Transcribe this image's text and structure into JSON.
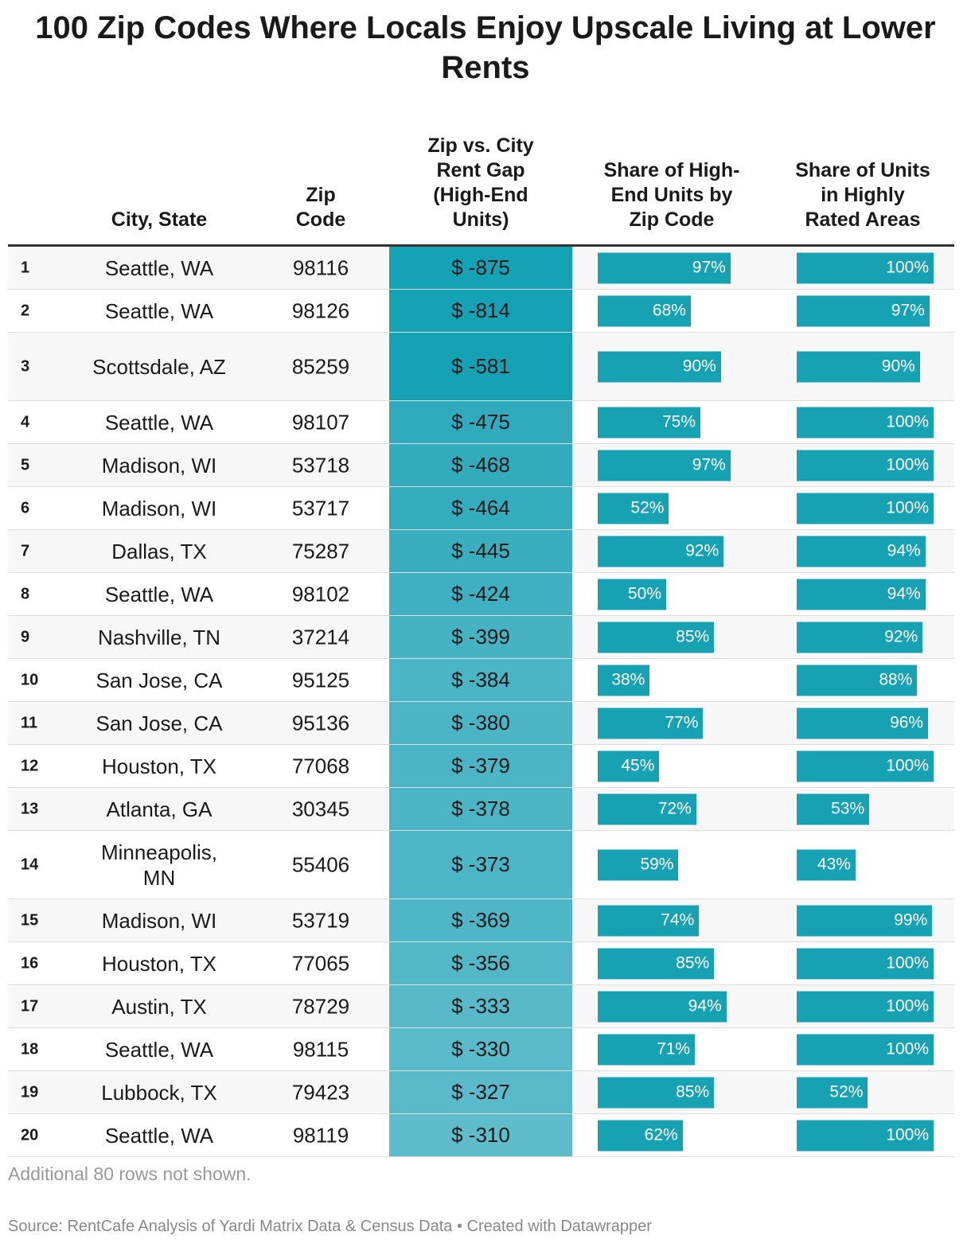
{
  "title": "100 Zip Codes Where Locals Enjoy Upscale Living at Lower Rents",
  "columns": {
    "city": "City, State",
    "zip": "Zip Code",
    "gap": "Zip vs. City Rent Gap (High-End Units)",
    "share_high_end": "Share of High-End Units by Zip Code",
    "share_rated": "Share of Units in Highly Rated Areas"
  },
  "colors": {
    "bar": "#17a2b4",
    "gap_dark": "#16a2b5",
    "gap_light": "#5fbccb",
    "rule": "#333333"
  },
  "chart_data": {
    "type": "table",
    "rows": [
      {
        "rank": "1",
        "city": "Seattle, WA",
        "zip": "98116",
        "gap": -875,
        "gap_label": "$ -875",
        "share_high_end": 97,
        "share_high_end_label": "97%",
        "share_rated": 100,
        "share_rated_label": "100%"
      },
      {
        "rank": "2",
        "city": "Seattle, WA",
        "zip": "98126",
        "gap": -814,
        "gap_label": "$ -814",
        "share_high_end": 68,
        "share_high_end_label": "68%",
        "share_rated": 97,
        "share_rated_label": "97%"
      },
      {
        "rank": "3",
        "city": "Scottsdale, AZ",
        "zip": "85259",
        "gap": -581,
        "gap_label": "$ -581",
        "share_high_end": 90,
        "share_high_end_label": "90%",
        "share_rated": 90,
        "share_rated_label": "90%"
      },
      {
        "rank": "4",
        "city": "Seattle, WA",
        "zip": "98107",
        "gap": -475,
        "gap_label": "$ -475",
        "share_high_end": 75,
        "share_high_end_label": "75%",
        "share_rated": 100,
        "share_rated_label": "100%"
      },
      {
        "rank": "5",
        "city": "Madison, WI",
        "zip": "53718",
        "gap": -468,
        "gap_label": "$ -468",
        "share_high_end": 97,
        "share_high_end_label": "97%",
        "share_rated": 100,
        "share_rated_label": "100%"
      },
      {
        "rank": "6",
        "city": "Madison, WI",
        "zip": "53717",
        "gap": -464,
        "gap_label": "$ -464",
        "share_high_end": 52,
        "share_high_end_label": "52%",
        "share_rated": 100,
        "share_rated_label": "100%"
      },
      {
        "rank": "7",
        "city": "Dallas, TX",
        "zip": "75287",
        "gap": -445,
        "gap_label": "$ -445",
        "share_high_end": 92,
        "share_high_end_label": "92%",
        "share_rated": 94,
        "share_rated_label": "94%"
      },
      {
        "rank": "8",
        "city": "Seattle, WA",
        "zip": "98102",
        "gap": -424,
        "gap_label": "$ -424",
        "share_high_end": 50,
        "share_high_end_label": "50%",
        "share_rated": 94,
        "share_rated_label": "94%"
      },
      {
        "rank": "9",
        "city": "Nashville, TN",
        "zip": "37214",
        "gap": -399,
        "gap_label": "$ -399",
        "share_high_end": 85,
        "share_high_end_label": "85%",
        "share_rated": 92,
        "share_rated_label": "92%"
      },
      {
        "rank": "10",
        "city": "San Jose, CA",
        "zip": "95125",
        "gap": -384,
        "gap_label": "$ -384",
        "share_high_end": 38,
        "share_high_end_label": "38%",
        "share_rated": 88,
        "share_rated_label": "88%"
      },
      {
        "rank": "11",
        "city": "San Jose, CA",
        "zip": "95136",
        "gap": -380,
        "gap_label": "$ -380",
        "share_high_end": 77,
        "share_high_end_label": "77%",
        "share_rated": 96,
        "share_rated_label": "96%"
      },
      {
        "rank": "12",
        "city": "Houston, TX",
        "zip": "77068",
        "gap": -379,
        "gap_label": "$ -379",
        "share_high_end": 45,
        "share_high_end_label": "45%",
        "share_rated": 100,
        "share_rated_label": "100%"
      },
      {
        "rank": "13",
        "city": "Atlanta, GA",
        "zip": "30345",
        "gap": -378,
        "gap_label": "$ -378",
        "share_high_end": 72,
        "share_high_end_label": "72%",
        "share_rated": 53,
        "share_rated_label": "53%"
      },
      {
        "rank": "14",
        "city": "Minneapolis, MN",
        "zip": "55406",
        "gap": -373,
        "gap_label": "$ -373",
        "share_high_end": 59,
        "share_high_end_label": "59%",
        "share_rated": 43,
        "share_rated_label": "43%"
      },
      {
        "rank": "15",
        "city": "Madison, WI",
        "zip": "53719",
        "gap": -369,
        "gap_label": "$ -369",
        "share_high_end": 74,
        "share_high_end_label": "74%",
        "share_rated": 99,
        "share_rated_label": "99%"
      },
      {
        "rank": "16",
        "city": "Houston, TX",
        "zip": "77065",
        "gap": -356,
        "gap_label": "$ -356",
        "share_high_end": 85,
        "share_high_end_label": "85%",
        "share_rated": 100,
        "share_rated_label": "100%"
      },
      {
        "rank": "17",
        "city": "Austin, TX",
        "zip": "78729",
        "gap": -333,
        "gap_label": "$ -333",
        "share_high_end": 94,
        "share_high_end_label": "94%",
        "share_rated": 100,
        "share_rated_label": "100%"
      },
      {
        "rank": "18",
        "city": "Seattle, WA",
        "zip": "98115",
        "gap": -330,
        "gap_label": "$ -330",
        "share_high_end": 71,
        "share_high_end_label": "71%",
        "share_rated": 100,
        "share_rated_label": "100%"
      },
      {
        "rank": "19",
        "city": "Lubbock, TX",
        "zip": "79423",
        "gap": -327,
        "gap_label": "$ -327",
        "share_high_end": 85,
        "share_high_end_label": "85%",
        "share_rated": 52,
        "share_rated_label": "52%"
      },
      {
        "rank": "20",
        "city": "Seattle, WA",
        "zip": "98119",
        "gap": -310,
        "gap_label": "$ -310",
        "share_high_end": 62,
        "share_high_end_label": "62%",
        "share_rated": 100,
        "share_rated_label": "100%"
      }
    ]
  },
  "note": "Additional 80 rows not shown.",
  "source": "Source: RentCafe Analysis of Yardi Matrix Data & Census Data • Created with Datawrapper"
}
